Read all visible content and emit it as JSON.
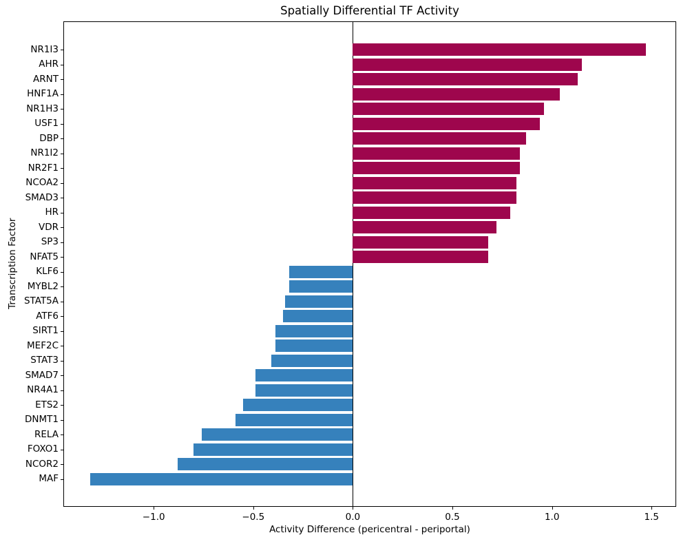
{
  "chart_data": {
    "type": "bar",
    "orientation": "horizontal",
    "title": "Spatially Differential TF Activity",
    "xlabel": "Activity Difference (pericentral - periportal)",
    "ylabel": "Transcription Factor",
    "categories": [
      "NR1I3",
      "AHR",
      "ARNT",
      "HNF1A",
      "NR1H3",
      "USF1",
      "DBP",
      "NR1I2",
      "NR2F1",
      "NCOA2",
      "SMAD3",
      "HR",
      "VDR",
      "SP3",
      "NFAT5",
      "KLF6",
      "MYBL2",
      "STAT5A",
      "ATF6",
      "SIRT1",
      "MEF2C",
      "STAT3",
      "SMAD7",
      "NR4A1",
      "ETS2",
      "DNMT1",
      "RELA",
      "FOXO1",
      "NCOR2",
      "MAF"
    ],
    "values": [
      1.47,
      1.15,
      1.13,
      1.04,
      0.96,
      0.94,
      0.87,
      0.84,
      0.84,
      0.82,
      0.82,
      0.79,
      0.72,
      0.68,
      0.68,
      -0.32,
      -0.32,
      -0.34,
      -0.35,
      -0.39,
      -0.39,
      -0.41,
      -0.49,
      -0.49,
      -0.55,
      -0.59,
      -0.76,
      -0.8,
      -0.88,
      -1.32
    ],
    "positive_color": "#9E064D",
    "negative_color": "#3681BC",
    "xlim": [
      -1.45,
      1.62
    ],
    "x_ticks": [
      "−1.0",
      "−0.5",
      "0.0",
      "0.5",
      "1.0",
      "1.5"
    ],
    "x_tick_values": [
      -1.0,
      -0.5,
      0.0,
      0.5,
      1.0,
      1.5
    ],
    "zero_line": true,
    "grid": false,
    "legend": "none"
  }
}
